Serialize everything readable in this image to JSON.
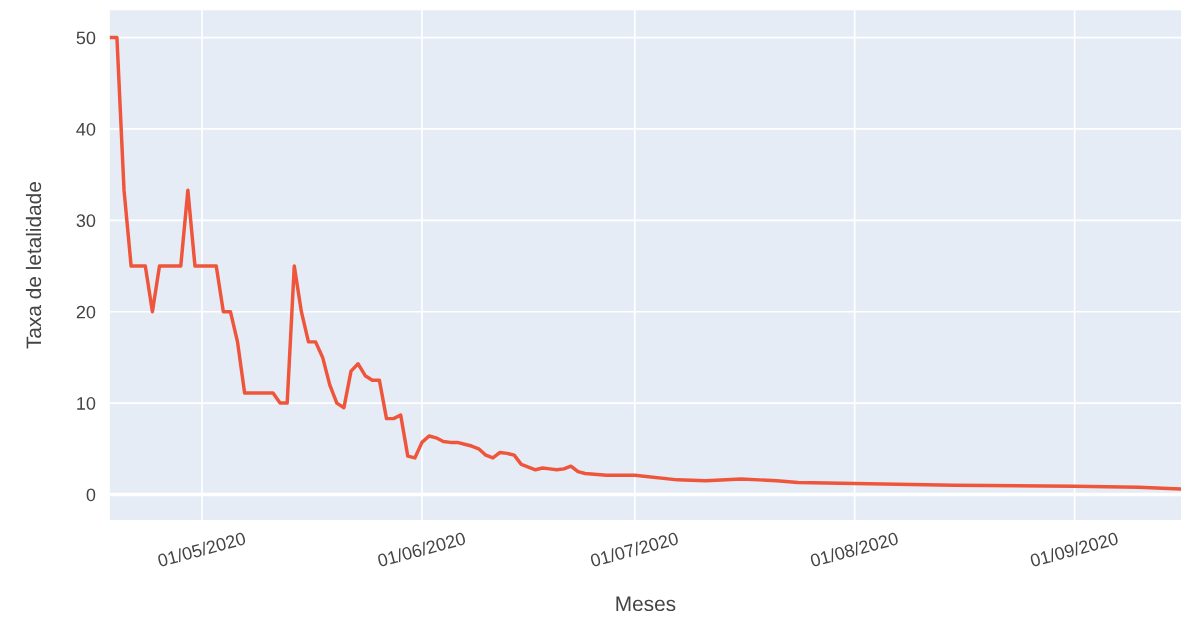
{
  "chart_data": {
    "type": "line",
    "xlabel": "Meses",
    "ylabel": "Taxa de letalidade",
    "x": [
      "2020-04-18",
      "2020-04-19",
      "2020-04-20",
      "2020-04-21",
      "2020-04-22",
      "2020-04-23",
      "2020-04-24",
      "2020-04-25",
      "2020-04-26",
      "2020-04-27",
      "2020-04-28",
      "2020-04-29",
      "2020-04-30",
      "2020-05-01",
      "2020-05-02",
      "2020-05-03",
      "2020-05-04",
      "2020-05-05",
      "2020-05-06",
      "2020-05-07",
      "2020-05-08",
      "2020-05-09",
      "2020-05-10",
      "2020-05-11",
      "2020-05-12",
      "2020-05-13",
      "2020-05-14",
      "2020-05-15",
      "2020-05-16",
      "2020-05-17",
      "2020-05-18",
      "2020-05-19",
      "2020-05-20",
      "2020-05-21",
      "2020-05-22",
      "2020-05-23",
      "2020-05-24",
      "2020-05-25",
      "2020-05-26",
      "2020-05-27",
      "2020-05-28",
      "2020-05-29",
      "2020-05-30",
      "2020-05-31",
      "2020-06-01",
      "2020-06-02",
      "2020-06-03",
      "2020-06-04",
      "2020-06-05",
      "2020-06-06",
      "2020-06-07",
      "2020-06-08",
      "2020-06-09",
      "2020-06-10",
      "2020-06-11",
      "2020-06-12",
      "2020-06-13",
      "2020-06-14",
      "2020-06-15",
      "2020-06-16",
      "2020-06-17",
      "2020-06-18",
      "2020-06-19",
      "2020-06-20",
      "2020-06-21",
      "2020-06-22",
      "2020-06-23",
      "2020-06-24",
      "2020-06-27",
      "2020-07-01",
      "2020-07-07",
      "2020-07-11",
      "2020-07-16",
      "2020-07-21",
      "2020-07-24",
      "2020-08-01",
      "2020-08-15",
      "2020-09-01",
      "2020-09-10",
      "2020-09-16"
    ],
    "series": [
      {
        "color": "#ef553b",
        "values": [
          50,
          50,
          33.3,
          25,
          25,
          25,
          20,
          25,
          25,
          25,
          25,
          33.3,
          25,
          25,
          25,
          25,
          20,
          20,
          16.7,
          11.1,
          11.1,
          11.1,
          11.1,
          11.1,
          10,
          10,
          25,
          20,
          16.7,
          16.7,
          15,
          12,
          10,
          9.5,
          13.5,
          14.3,
          13,
          12.5,
          12.5,
          8.3,
          8.3,
          8.7,
          4.2,
          4,
          5.7,
          6.4,
          6.2,
          5.8,
          5.7,
          5.7,
          5.5,
          5.3,
          5,
          4.3,
          4,
          4.6,
          4.5,
          4.3,
          3.3,
          3,
          2.7,
          2.9,
          2.8,
          2.7,
          2.8,
          3.1,
          2.5,
          2.3,
          2.1,
          2.1,
          1.6,
          1.5,
          1.7,
          1.5,
          1.3,
          1.2,
          1,
          0.9,
          0.8,
          0.6
        ]
      }
    ],
    "xlim": [
      "2020-04-18",
      "2020-09-16"
    ],
    "xticks": [
      {
        "value": "2020-05-01",
        "label": "01/05/2020"
      },
      {
        "value": "2020-06-01",
        "label": "01/06/2020"
      },
      {
        "value": "2020-07-01",
        "label": "01/07/2020"
      },
      {
        "value": "2020-08-01",
        "label": "01/08/2020"
      },
      {
        "value": "2020-09-01",
        "label": "01/09/2020"
      }
    ],
    "ylim": [
      -2.8,
      53
    ],
    "yticks": [
      0,
      10,
      20,
      30,
      40,
      50
    ],
    "grid": true,
    "legend": false,
    "marker": "none",
    "line_style": "solid"
  }
}
